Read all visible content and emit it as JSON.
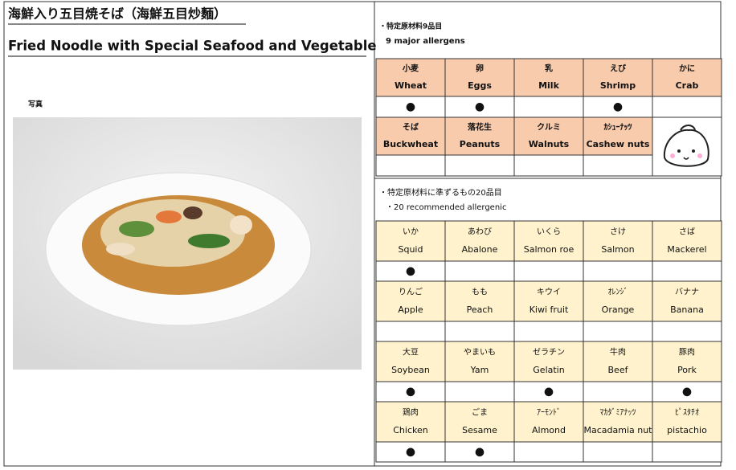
{
  "header": {
    "title_jp": "海鮮入り五目焼そば（海鮮五目炒麵）",
    "title_en": "Fried Noodle with Special Seafood and Vegetable",
    "photo_label": "写真"
  },
  "major": {
    "heading_jp": "・特定原材料9品目",
    "heading_en": "9 major allergens",
    "items": [
      {
        "jp": "小麦",
        "en": "Wheat",
        "mark": "●"
      },
      {
        "jp": "卵",
        "en": "Eggs",
        "mark": "●"
      },
      {
        "jp": "乳",
        "en": "Milk"
      },
      {
        "jp": "えび",
        "en": "Shrimp",
        "mark": "●"
      },
      {
        "jp": "かに",
        "en": "Crab"
      },
      {
        "jp": "そば",
        "en": "Buckwheat"
      },
      {
        "jp": "落花生",
        "en": "Peanuts"
      },
      {
        "jp": "クルミ",
        "en": "Walnuts"
      },
      {
        "jp": "ｶｼｭｰﾅｯﾂ",
        "en": "Cashew nuts"
      }
    ]
  },
  "recommended": {
    "heading_jp": "・特定原材料に準ずるもの20品目",
    "heading_en": "・20 recommended allergenic",
    "items": [
      {
        "jp": "いか",
        "en": "Squid",
        "mark": "●"
      },
      {
        "jp": "あわび",
        "en": "Abalone"
      },
      {
        "jp": "いくら",
        "en": "Salmon roe"
      },
      {
        "jp": "さけ",
        "en": "Salmon"
      },
      {
        "jp": "さば",
        "en": "Mackerel"
      },
      {
        "jp": "りんご",
        "en": "Apple"
      },
      {
        "jp": "もも",
        "en": "Peach"
      },
      {
        "jp": "キウイ",
        "en": "Kiwi fruit"
      },
      {
        "jp": "ｵﾚﾝｼﾞ",
        "en": "Orange"
      },
      {
        "jp": "バナナ",
        "en": "Banana"
      },
      {
        "jp": "大豆",
        "en": "Soybean",
        "mark": "●"
      },
      {
        "jp": "やまいも",
        "en": "Yam"
      },
      {
        "jp": "ゼラチン",
        "en": "Gelatin",
        "mark": "●"
      },
      {
        "jp": "牛肉",
        "en": "Beef"
      },
      {
        "jp": "豚肉",
        "en": "Pork",
        "mark": "●"
      },
      {
        "jp": "鶏肉",
        "en": "Chicken",
        "mark": "●"
      },
      {
        "jp": "ごま",
        "en": "Sesame",
        "mark": "●"
      },
      {
        "jp": "ｱｰﾓﾝﾄﾞ",
        "en": "Almond"
      },
      {
        "jp": "ﾏｶﾀﾞﾐｱﾅｯﾂ",
        "en": "Macadamia nut"
      },
      {
        "jp": "ﾋﾟｽﾀﾁｵ",
        "en": "pistachio"
      }
    ]
  }
}
